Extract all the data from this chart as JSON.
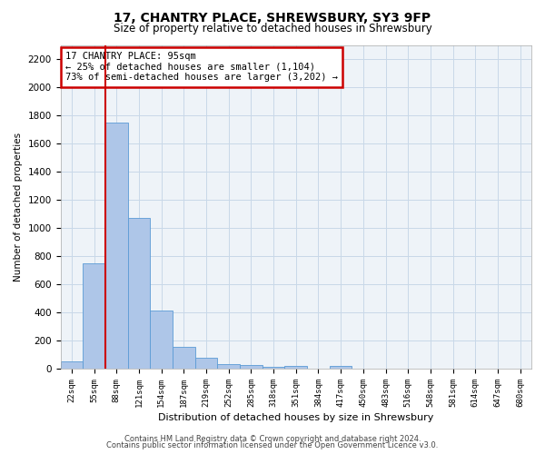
{
  "title_line1": "17, CHANTRY PLACE, SHREWSBURY, SY3 9FP",
  "title_line2": "Size of property relative to detached houses in Shrewsbury",
  "xlabel": "Distribution of detached houses by size in Shrewsbury",
  "ylabel": "Number of detached properties",
  "footer_line1": "Contains HM Land Registry data © Crown copyright and database right 2024.",
  "footer_line2": "Contains public sector information licensed under the Open Government Licence v3.0.",
  "bar_labels": [
    "22sqm",
    "55sqm",
    "88sqm",
    "121sqm",
    "154sqm",
    "187sqm",
    "219sqm",
    "252sqm",
    "285sqm",
    "318sqm",
    "351sqm",
    "384sqm",
    "417sqm",
    "450sqm",
    "483sqm",
    "516sqm",
    "548sqm",
    "581sqm",
    "614sqm",
    "647sqm",
    "680sqm"
  ],
  "bar_values": [
    50,
    750,
    1750,
    1070,
    415,
    155,
    80,
    35,
    25,
    15,
    20,
    0,
    20,
    0,
    0,
    0,
    0,
    0,
    0,
    0,
    0
  ],
  "bar_color": "#aec6e8",
  "bar_edge_color": "#5b9bd5",
  "grid_color": "#c8d8e8",
  "background_color": "#eef3f8",
  "annotation_box_color": "#cc0000",
  "property_label": "17 CHANTRY PLACE: 95sqm",
  "annotation_line1": "← 25% of detached houses are smaller (1,104)",
  "annotation_line2": "73% of semi-detached houses are larger (3,202) →",
  "vline_color": "#cc0000",
  "ylim": [
    0,
    2300
  ],
  "yticks": [
    0,
    200,
    400,
    600,
    800,
    1000,
    1200,
    1400,
    1600,
    1800,
    2000,
    2200
  ]
}
